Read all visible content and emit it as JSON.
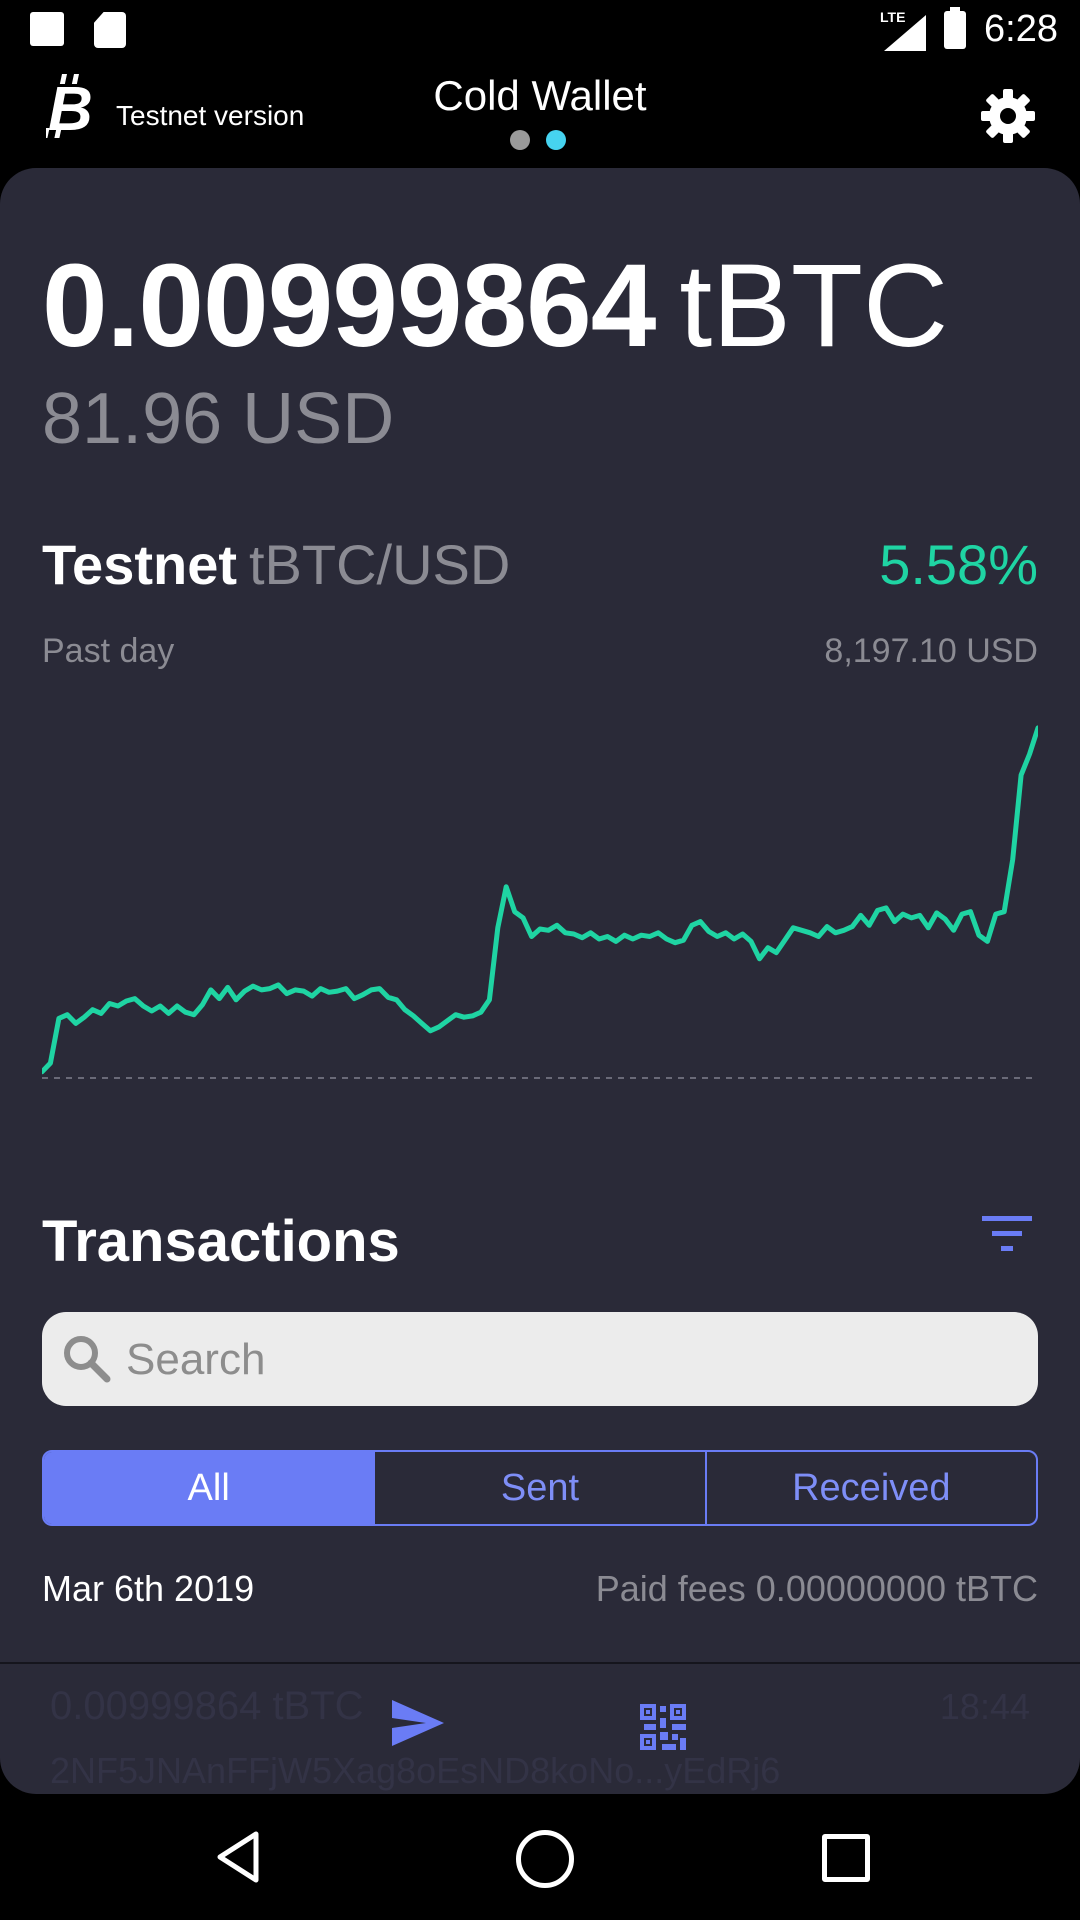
{
  "status_bar": {
    "time": "6:28",
    "network": "LTE"
  },
  "header": {
    "network_label": "Testnet version",
    "title": "Cold Wallet",
    "page_dots": 2,
    "active_page": 2
  },
  "balance": {
    "amount": "0.00999864",
    "unit": "tBTC",
    "fiat": "81.96 USD"
  },
  "market": {
    "name": "Testnet",
    "pair": "tBTC/USD",
    "change": "5.58%",
    "period": "Past day",
    "price": "8,197.10 USD"
  },
  "chart_data": {
    "type": "line",
    "title": "",
    "line_color": "#1fd4a3",
    "baseline": "dashed",
    "values": [
      7765,
      7772,
      7808,
      7811,
      7804,
      7809,
      7815,
      7812,
      7820,
      7818,
      7822,
      7824,
      7818,
      7814,
      7818,
      7812,
      7818,
      7813,
      7811,
      7819,
      7831,
      7824,
      7833,
      7823,
      7830,
      7834,
      7831,
      7832,
      7835,
      7828,
      7831,
      7830,
      7826,
      7832,
      7829,
      7830,
      7832,
      7824,
      7827,
      7831,
      7832,
      7825,
      7823,
      7815,
      7810,
      7804,
      7798,
      7801,
      7806,
      7811,
      7809,
      7810,
      7813,
      7823,
      7881,
      7914,
      7894,
      7889,
      7874,
      7880,
      7879,
      7883,
      7877,
      7876,
      7873,
      7877,
      7872,
      7874,
      7870,
      7875,
      7872,
      7875,
      7874,
      7877,
      7872,
      7869,
      7871,
      7883,
      7886,
      7878,
      7874,
      7877,
      7872,
      7876,
      7870,
      7856,
      7865,
      7861,
      7871,
      7881,
      7879,
      7877,
      7874,
      7882,
      7877,
      7879,
      7882,
      7891,
      7883,
      7895,
      7897,
      7886,
      7892,
      7889,
      7891,
      7881,
      7893,
      7888,
      7879,
      7892,
      7894,
      7875,
      7870,
      7892,
      7894,
      7936,
      8004,
      8021,
      8042
    ],
    "ylim": [
      7760,
      8050
    ]
  },
  "transactions": {
    "title": "Transactions",
    "search_placeholder": "Search",
    "filters": [
      "All",
      "Sent",
      "Received"
    ],
    "selected_filter": "All",
    "groups": [
      {
        "date": "Mar 6th 2019",
        "fees": "Paid fees 0.00000000 tBTC",
        "items": [
          {
            "amount": "0.00999864 tBTC",
            "time": "18:44",
            "address": "2NF5JNAnFFjW5Xag8oEsND8koNo...yEdRj6"
          }
        ]
      }
    ]
  },
  "actions": {
    "send": "send-icon",
    "receive": "qr-code-icon"
  },
  "colors": {
    "accent": "#6a7cf5",
    "positive": "#1fd4a3",
    "card_bg": "#2a2a38",
    "active_dot": "#46d3f0"
  }
}
